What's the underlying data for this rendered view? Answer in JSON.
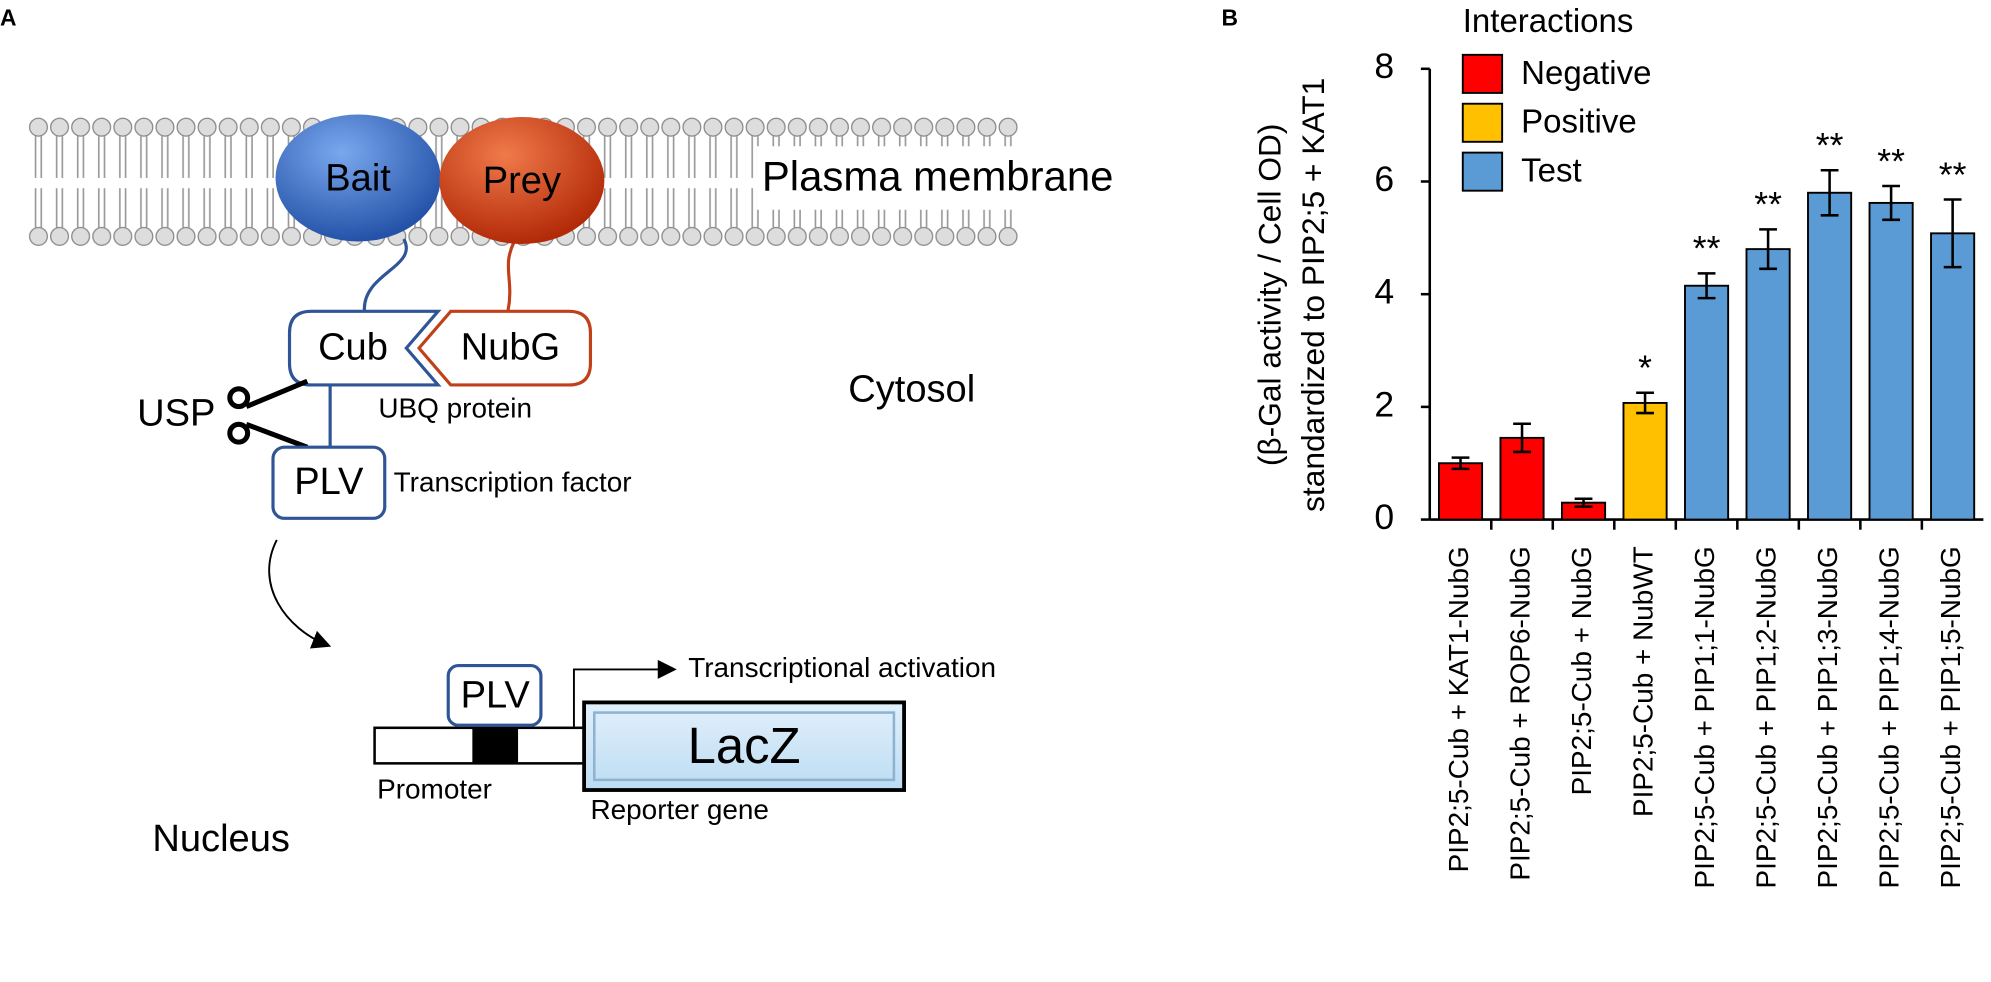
{
  "panel_a": {
    "label": "A",
    "bait": "Bait",
    "prey": "Prey",
    "membrane": "Plasma membrane",
    "cub": "Cub",
    "nubg": "NubG",
    "ubq": "UBQ protein",
    "usp": "USP",
    "plv": "PLV",
    "tf": "Transcription factor",
    "cytosol": "Cytosol",
    "plv2": "PLV",
    "activation": "Transcriptional activation",
    "lacz": "LacZ",
    "promoter": "Promoter",
    "reporter": "Reporter gene",
    "nucleus": "Nucleus"
  },
  "chart_data": {
    "type": "bar",
    "panel_label": "B",
    "ylabel": [
      "(β-Gal activity / Cell OD)",
      "standardized to PIP2;5 + KAT1"
    ],
    "legend_title": "Interactions",
    "categories": [
      "PIP2;5-Cub + KAT1-NubG",
      "PIP2;5-Cub + ROP6-NubG",
      "PIP2;5-Cub + NubG",
      "PIP2;5-Cub + NubWT",
      "PIP2;5-Cub + PIP1;1-NubG",
      "PIP2;5-Cub + PIP1;2-NubG",
      "PIP2;5-Cub + PIP1;3-NubG",
      "PIP2;5-Cub + PIP1;4-NubG",
      "PIP2;5-Cub + PIP1;5-NubG"
    ],
    "series": [
      {
        "name": "Negative",
        "color": "#ff0000",
        "values": [
          1.0,
          1.45,
          0.3,
          null,
          null,
          null,
          null,
          null,
          null
        ],
        "errors": [
          0.1,
          0.25,
          0.07,
          null,
          null,
          null,
          null,
          null,
          null
        ]
      },
      {
        "name": "Positive",
        "color": "#ffc000",
        "values": [
          null,
          null,
          null,
          2.07,
          null,
          null,
          null,
          null,
          null
        ],
        "errors": [
          null,
          null,
          null,
          0.18,
          null,
          null,
          null,
          null,
          null
        ]
      },
      {
        "name": "Test",
        "color": "#5b9bd5",
        "values": [
          null,
          null,
          null,
          null,
          4.15,
          4.8,
          5.8,
          5.62,
          5.08
        ],
        "errors": [
          null,
          null,
          null,
          null,
          0.22,
          0.35,
          0.4,
          0.3,
          0.6
        ]
      }
    ],
    "annotations": [
      null,
      null,
      null,
      "*",
      "**",
      "**",
      "**",
      "**",
      "**"
    ],
    "ylim": [
      0,
      8
    ],
    "yticks": [
      0,
      2,
      4,
      6,
      8
    ],
    "grid": false
  }
}
